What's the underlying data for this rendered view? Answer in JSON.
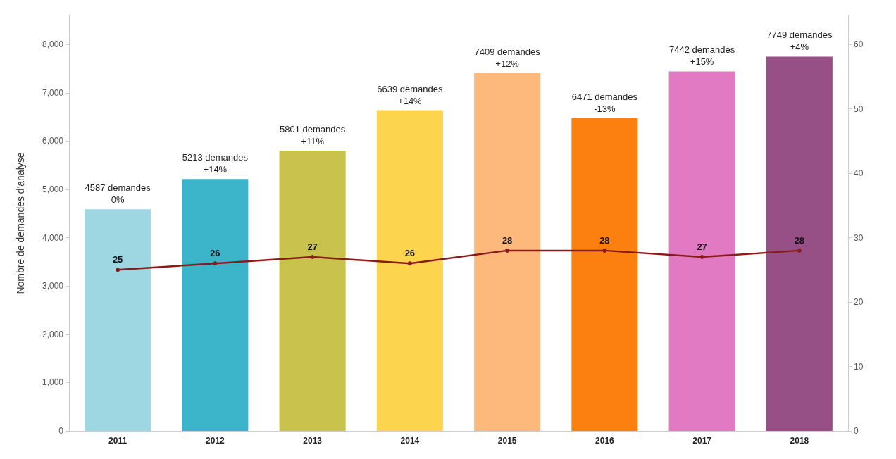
{
  "chart_data": {
    "type": "bar",
    "ylabel": "Nombre de demandes d'analyse",
    "categories": [
      "2011",
      "2012",
      "2013",
      "2014",
      "2015",
      "2016",
      "2017",
      "2018"
    ],
    "series": [
      {
        "colors": [
          "#9ed6e2",
          "#3cb5cb",
          "#c9c34d",
          "#fdd44e",
          "#fdb87c",
          "#fb800f",
          "#e279c3",
          "#965086"
        ],
        "values": [
          4587,
          5213,
          5801,
          6639,
          7409,
          6471,
          7442,
          7749
        ],
        "value_labels": [
          "4587 demandes\n0%",
          "5213 demandes\n+14%",
          "5801 demandes\n+11%",
          "6639 demandes\n+14%",
          "7409 demandes\n+12%",
          "6471 demandes\n-13%",
          "7442 demandes\n+15%",
          "7749 demandes\n+4%"
        ]
      },
      {
        "type": "line",
        "axis": "y2",
        "color": "#8b1a1a",
        "marker": "circle",
        "values": [
          25,
          26,
          27,
          26,
          28,
          28,
          27,
          28
        ],
        "value_labels": [
          "25",
          "26",
          "27",
          "26",
          "28",
          "28",
          "27",
          "28"
        ]
      }
    ],
    "ylim": [
      0,
      8600
    ],
    "yticks": [
      0,
      {
        "value": 1000,
        "label": "1,000"
      },
      {
        "value": 2000,
        "label": "2,000"
      },
      {
        "value": 3000,
        "label": "3,000"
      },
      {
        "value": 4000,
        "label": "4,000"
      },
      {
        "value": 5000,
        "label": "5,000"
      },
      {
        "value": 6000,
        "label": "6,000"
      },
      {
        "value": 7000,
        "label": "7,000"
      },
      {
        "value": 8000,
        "label": "8,000"
      }
    ],
    "y2lim": [
      0,
      64.5
    ],
    "y2ticks": [
      0,
      10,
      20,
      30,
      40,
      50,
      60
    ]
  }
}
